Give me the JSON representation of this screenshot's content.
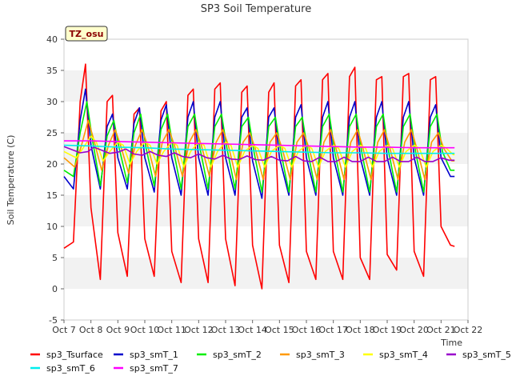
{
  "chart_data": {
    "type": "line",
    "title": "SP3 Soil Temperature",
    "ylabel": "Soil Temperature (C)",
    "xlabel": "Time",
    "badge": "TZ_osu",
    "ylim": [
      -5,
      40
    ],
    "yticks": [
      -5,
      0,
      5,
      10,
      15,
      20,
      25,
      30,
      35,
      40
    ],
    "xlim": [
      7,
      22
    ],
    "xticks": [
      7,
      8,
      9,
      10,
      11,
      12,
      13,
      14,
      15,
      16,
      17,
      18,
      19,
      20,
      21,
      22
    ],
    "xtick_labels": [
      "Oct 7",
      "Oct 8",
      "Oct 9",
      "Oct 10",
      "Oct 11",
      "Oct 12",
      "Oct 13",
      "Oct 14",
      "Oct 15",
      "Oct 16",
      "Oct 17",
      "Oct 18",
      "Oct 19",
      "Oct 20",
      "Oct 21",
      "Oct 22"
    ],
    "grid": "horizontal bands",
    "legend_position": "bottom",
    "series": [
      {
        "name": "sp3_Tsurface",
        "color": "#ff0000",
        "x": [
          7.0,
          7.35,
          7.6,
          7.8,
          8.0,
          8.35,
          8.6,
          8.8,
          9.0,
          9.35,
          9.6,
          9.8,
          10.0,
          10.35,
          10.6,
          10.8,
          11.0,
          11.35,
          11.6,
          11.8,
          12.0,
          12.35,
          12.6,
          12.8,
          13.0,
          13.35,
          13.6,
          13.8,
          14.0,
          14.35,
          14.6,
          14.8,
          15.0,
          15.35,
          15.6,
          15.8,
          16.0,
          16.35,
          16.6,
          16.8,
          17.0,
          17.35,
          17.6,
          17.8,
          18.0,
          18.35,
          18.6,
          18.8,
          19.0,
          19.35,
          19.6,
          19.8,
          20.0,
          20.35,
          20.6,
          20.8,
          21.0,
          21.35,
          21.5
        ],
        "y": [
          6.5,
          7.5,
          30.0,
          36.0,
          13.0,
          1.5,
          30.0,
          31.0,
          9.0,
          2.0,
          28.0,
          29.0,
          8.0,
          2.0,
          28.5,
          30.0,
          6.0,
          1.0,
          31.0,
          32.0,
          8.0,
          1.0,
          32.0,
          33.0,
          8.0,
          0.5,
          31.5,
          32.5,
          7.0,
          0.0,
          31.5,
          33.0,
          7.0,
          1.0,
          32.5,
          33.5,
          6.0,
          1.5,
          33.5,
          34.5,
          6.0,
          1.5,
          34.0,
          35.5,
          5.0,
          1.5,
          33.5,
          34.0,
          5.5,
          3.0,
          34.0,
          34.5,
          6.0,
          2.0,
          33.5,
          34.0,
          10.0,
          7.0,
          6.8
        ]
      },
      {
        "name": "sp3_smT_1",
        "color": "#0000cc",
        "x": [
          7.0,
          7.35,
          7.6,
          7.8,
          8.0,
          8.35,
          8.6,
          8.8,
          9.0,
          9.35,
          9.6,
          9.8,
          10.0,
          10.35,
          10.6,
          10.8,
          11.0,
          11.35,
          11.6,
          11.8,
          12.0,
          12.35,
          12.6,
          12.8,
          13.0,
          13.35,
          13.6,
          13.8,
          14.0,
          14.35,
          14.6,
          14.8,
          15.0,
          15.35,
          15.6,
          15.8,
          16.0,
          16.35,
          16.6,
          16.8,
          17.0,
          17.35,
          17.6,
          17.8,
          18.0,
          18.35,
          18.6,
          18.8,
          19.0,
          19.35,
          19.6,
          19.8,
          20.0,
          20.35,
          20.6,
          20.8,
          21.0,
          21.35,
          21.5
        ],
        "y": [
          18.0,
          16.0,
          27.0,
          32.0,
          23.0,
          16.0,
          26.0,
          28.0,
          21.0,
          16.0,
          26.5,
          29.0,
          21.0,
          15.5,
          27.0,
          29.5,
          21.0,
          15.0,
          27.5,
          30.0,
          21.0,
          15.0,
          27.5,
          30.0,
          21.0,
          15.0,
          27.5,
          29.0,
          20.5,
          14.5,
          27.5,
          29.0,
          21.0,
          15.0,
          27.5,
          29.5,
          21.0,
          15.0,
          27.5,
          30.0,
          21.0,
          15.0,
          27.5,
          30.0,
          21.0,
          15.0,
          27.5,
          30.0,
          21.0,
          15.0,
          27.5,
          30.0,
          21.0,
          15.0,
          27.5,
          29.5,
          21.0,
          18.0,
          18.0
        ]
      },
      {
        "name": "sp3_smT_2",
        "color": "#00ee00",
        "x": [
          7.0,
          7.35,
          7.6,
          7.85,
          8.05,
          8.35,
          8.6,
          8.85,
          9.05,
          9.35,
          9.6,
          9.85,
          10.05,
          10.35,
          10.6,
          10.85,
          11.05,
          11.35,
          11.6,
          11.85,
          12.05,
          12.35,
          12.6,
          12.85,
          13.05,
          13.35,
          13.6,
          13.85,
          14.05,
          14.35,
          14.6,
          14.85,
          15.05,
          15.35,
          15.6,
          15.85,
          16.05,
          16.35,
          16.6,
          16.85,
          17.05,
          17.35,
          17.6,
          17.85,
          18.05,
          18.35,
          18.6,
          18.85,
          19.05,
          19.35,
          19.6,
          19.85,
          20.05,
          20.35,
          20.6,
          20.85,
          21.05,
          21.35,
          21.5
        ],
        "y": [
          19.0,
          18.0,
          25.0,
          30.0,
          24.0,
          16.5,
          24.5,
          27.0,
          22.5,
          17.0,
          25.0,
          28.0,
          22.5,
          16.5,
          25.5,
          28.0,
          22.5,
          16.0,
          26.0,
          28.0,
          22.5,
          16.0,
          26.0,
          28.0,
          22.5,
          16.0,
          26.0,
          27.5,
          22.0,
          15.5,
          26.0,
          27.5,
          22.0,
          15.5,
          26.0,
          27.5,
          22.0,
          15.5,
          26.0,
          28.0,
          22.0,
          15.5,
          26.0,
          28.0,
          22.0,
          15.5,
          26.0,
          28.0,
          22.0,
          15.5,
          26.0,
          28.0,
          22.0,
          15.5,
          26.0,
          28.0,
          22.0,
          19.0,
          19.0
        ]
      },
      {
        "name": "sp3_smT_3",
        "color": "#ff9900",
        "x": [
          7.0,
          7.4,
          7.65,
          7.9,
          8.1,
          8.4,
          8.65,
          8.9,
          9.1,
          9.4,
          9.65,
          9.9,
          10.1,
          10.4,
          10.65,
          10.9,
          11.1,
          11.4,
          11.65,
          11.9,
          12.1,
          12.4,
          12.65,
          12.9,
          13.1,
          13.4,
          13.65,
          13.9,
          14.1,
          14.4,
          14.65,
          14.9,
          15.1,
          15.4,
          15.65,
          15.9,
          16.1,
          16.4,
          16.65,
          16.9,
          17.1,
          17.4,
          17.65,
          17.9,
          18.1,
          18.4,
          18.65,
          18.9,
          19.1,
          19.4,
          19.65,
          19.9,
          20.1,
          20.4,
          20.65,
          20.9,
          21.1,
          21.4,
          21.5
        ],
        "y": [
          21.0,
          19.5,
          23.0,
          27.0,
          24.0,
          19.0,
          23.0,
          25.5,
          23.0,
          18.5,
          23.0,
          25.5,
          23.0,
          18.0,
          23.5,
          25.5,
          23.0,
          18.0,
          23.5,
          25.5,
          23.0,
          18.0,
          23.5,
          25.5,
          23.0,
          17.5,
          23.5,
          25.0,
          22.5,
          17.5,
          23.5,
          25.0,
          22.5,
          17.5,
          23.5,
          25.0,
          22.5,
          17.5,
          23.5,
          25.5,
          22.5,
          17.5,
          23.5,
          25.5,
          22.5,
          17.5,
          23.5,
          25.5,
          22.5,
          17.5,
          23.5,
          25.5,
          22.5,
          17.5,
          23.5,
          25.0,
          22.5,
          20.5,
          20.5
        ]
      },
      {
        "name": "sp3_smT_4",
        "color": "#ffff00",
        "x": [
          7.0,
          7.45,
          7.7,
          8.0,
          8.2,
          8.45,
          8.7,
          9.0,
          9.2,
          9.45,
          9.7,
          10.0,
          10.2,
          10.45,
          10.7,
          11.0,
          11.2,
          11.45,
          11.7,
          12.0,
          12.2,
          12.45,
          12.7,
          13.0,
          13.2,
          13.45,
          13.7,
          14.0,
          14.2,
          14.45,
          14.7,
          15.0,
          15.2,
          15.45,
          15.7,
          16.0,
          16.2,
          16.45,
          16.7,
          17.0,
          17.2,
          17.45,
          17.7,
          18.0,
          18.2,
          18.45,
          18.7,
          19.0,
          19.2,
          19.45,
          19.7,
          20.0,
          20.2,
          20.45,
          20.7,
          21.0,
          21.2,
          21.45,
          21.5
        ],
        "y": [
          22.0,
          21.0,
          22.5,
          24.5,
          23.5,
          20.5,
          22.0,
          23.5,
          23.0,
          20.0,
          22.0,
          23.5,
          23.0,
          20.0,
          22.0,
          23.5,
          23.0,
          19.5,
          22.0,
          23.5,
          23.0,
          19.5,
          22.0,
          23.5,
          23.0,
          19.5,
          22.0,
          23.0,
          22.5,
          19.5,
          22.0,
          23.0,
          22.5,
          19.5,
          22.0,
          23.0,
          22.5,
          19.5,
          22.0,
          23.0,
          22.5,
          19.5,
          22.0,
          23.0,
          22.5,
          19.5,
          22.0,
          23.0,
          22.5,
          19.5,
          22.0,
          23.0,
          22.5,
          19.5,
          22.0,
          23.0,
          22.5,
          21.5,
          21.5
        ]
      },
      {
        "name": "sp3_smT_5",
        "color": "#9900cc",
        "x": [
          7.0,
          7.3,
          7.6,
          7.9,
          8.1,
          8.4,
          8.7,
          9.0,
          9.3,
          9.6,
          9.9,
          10.2,
          10.5,
          10.8,
          11.1,
          11.4,
          11.7,
          12.0,
          12.3,
          12.6,
          12.9,
          13.2,
          13.5,
          13.8,
          14.1,
          14.4,
          14.7,
          15.0,
          15.3,
          15.6,
          15.9,
          16.2,
          16.5,
          16.8,
          17.1,
          17.4,
          17.7,
          18.0,
          18.3,
          18.6,
          18.9,
          19.2,
          19.5,
          19.8,
          20.1,
          20.4,
          20.7,
          21.0,
          21.3,
          21.5
        ],
        "y": [
          22.8,
          22.3,
          21.8,
          22.0,
          22.7,
          22.2,
          21.7,
          21.9,
          22.4,
          21.6,
          21.4,
          22.0,
          21.4,
          21.2,
          21.8,
          21.2,
          21.0,
          21.6,
          21.0,
          20.8,
          21.4,
          20.8,
          20.7,
          21.3,
          20.7,
          20.6,
          21.2,
          20.6,
          20.5,
          21.2,
          20.5,
          20.4,
          21.1,
          20.4,
          20.4,
          21.1,
          20.4,
          20.4,
          21.1,
          20.4,
          20.4,
          21.1,
          20.4,
          20.4,
          21.1,
          20.4,
          20.4,
          21.0,
          20.6,
          20.6
        ]
      },
      {
        "name": "sp3_smT_6",
        "color": "#00eeee",
        "x": [
          7.0,
          8.0,
          9.0,
          10.0,
          11.0,
          12.0,
          13.0,
          14.0,
          15.0,
          16.0,
          17.0,
          18.0,
          19.0,
          20.0,
          21.0,
          21.5
        ],
        "y": [
          23.0,
          22.9,
          22.7,
          22.6,
          22.4,
          22.3,
          22.2,
          22.1,
          22.0,
          21.9,
          21.8,
          21.8,
          21.7,
          21.7,
          21.7,
          21.7
        ]
      },
      {
        "name": "sp3_smT_7",
        "color": "#ff00ff",
        "x": [
          7.0,
          8.0,
          9.0,
          10.0,
          11.0,
          12.0,
          13.0,
          14.0,
          15.0,
          16.0,
          17.0,
          18.0,
          19.0,
          20.0,
          21.0,
          21.5
        ],
        "y": [
          23.7,
          23.7,
          23.6,
          23.5,
          23.4,
          23.3,
          23.2,
          23.1,
          23.0,
          22.9,
          22.8,
          22.7,
          22.7,
          22.6,
          22.6,
          22.6
        ]
      }
    ]
  }
}
